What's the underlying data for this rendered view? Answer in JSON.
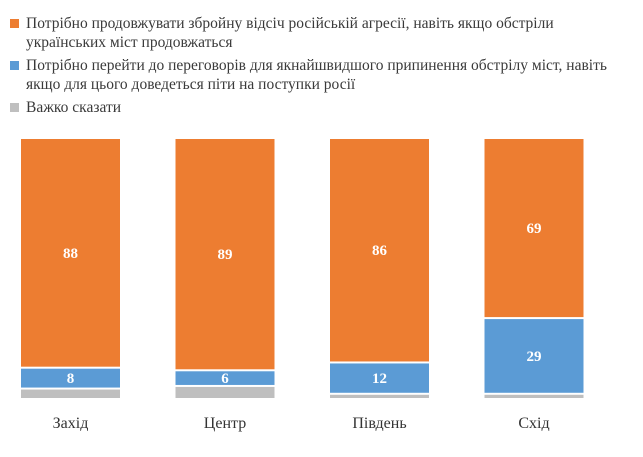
{
  "chart_data": {
    "type": "bar",
    "stacked": true,
    "percent": true,
    "categories": [
      "Захід",
      "Центр",
      "Південь",
      "Схід"
    ],
    "series": [
      {
        "name": "Важко сказати",
        "color": "#BFBFBF",
        "values": [
          4,
          5,
          2,
          2
        ],
        "labels": [
          "",
          "",
          "",
          ""
        ]
      },
      {
        "name": "Потрібно перейти до переговорів для якнайшвидшого припинення обстрілу міст, навіть якщо для цього доведеться піти на поступки росії",
        "color": "#5B9BD5",
        "values": [
          8,
          6,
          12,
          29
        ],
        "labels": [
          "8",
          "6",
          "12",
          "29"
        ]
      },
      {
        "name": "Потрібно продовжувати збройну відсіч російській агресії, навіть якщо обстріли українських міст продовжаться",
        "color": "#ED7D31",
        "values": [
          88,
          89,
          86,
          69
        ],
        "labels": [
          "88",
          "89",
          "86",
          "69"
        ]
      }
    ],
    "legend_order": [
      2,
      1,
      0
    ],
    "legend_position": "top",
    "ylim": [
      0,
      100
    ],
    "grid": false,
    "title": "",
    "xlabel": "",
    "ylabel": ""
  }
}
